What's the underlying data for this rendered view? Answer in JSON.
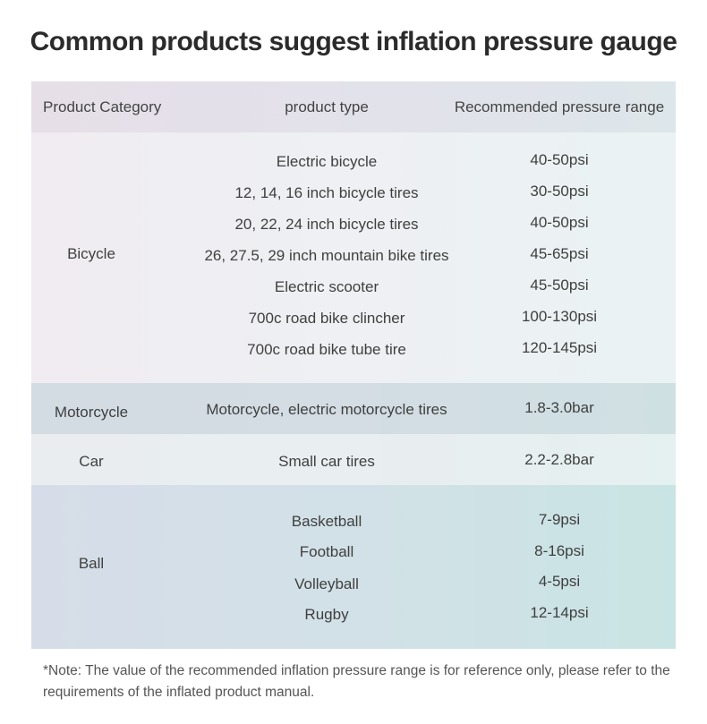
{
  "title": "Common products suggest inflation pressure gauge",
  "headers": {
    "category": "Product Category",
    "type": "product type",
    "range": "Recommended pressure range"
  },
  "groups": [
    {
      "category": "Bicycle",
      "items": [
        {
          "type": "Electric bicycle",
          "range": "40-50psi"
        },
        {
          "type": "12, 14, 16 inch bicycle tires",
          "range": "30-50psi"
        },
        {
          "type": "20, 22, 24 inch bicycle tires",
          "range": "40-50psi"
        },
        {
          "type": "26, 27.5, 29 inch mountain bike tires",
          "range": "45-65psi"
        },
        {
          "type": "Electric scooter",
          "range": "45-50psi"
        },
        {
          "type": "700c road bike clincher",
          "range": "100-130psi"
        },
        {
          "type": "700c road bike tube tire",
          "range": "120-145psi"
        }
      ]
    },
    {
      "category": "Motorcycle",
      "items": [
        {
          "type": "Motorcycle, electric motorcycle tires",
          "range": "1.8-3.0bar"
        }
      ]
    },
    {
      "category": "Car",
      "items": [
        {
          "type": "Small car tires",
          "range": "2.2-2.8bar"
        }
      ]
    },
    {
      "category": "Ball",
      "items": [
        {
          "type": "Basketball",
          "range": "7-9psi"
        },
        {
          "type": "Football",
          "range": "8-16psi"
        },
        {
          "type": "Volleyball",
          "range": "4-5psi"
        },
        {
          "type": "Rugby",
          "range": "12-14psi"
        }
      ]
    }
  ],
  "note": "*Note: The value of the recommended inflation pressure range is for reference only, please refer to the requirements of the inflated product manual."
}
